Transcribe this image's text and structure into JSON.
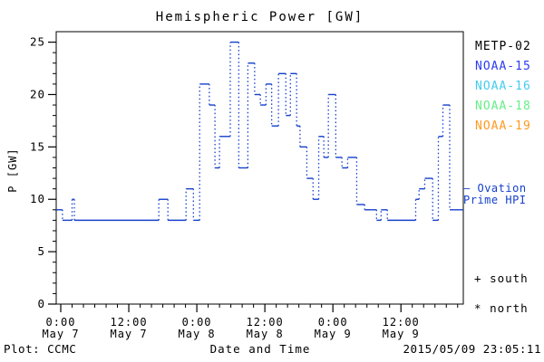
{
  "window": {
    "background": "#ffffff"
  },
  "chart_data": {
    "type": "line",
    "title": "Hemispheric Power [GW]",
    "xlabel": "Date and Time",
    "ylabel": "P [GW]",
    "ylim": [
      0,
      26
    ],
    "y_ticks": [
      0,
      5,
      10,
      15,
      20,
      25
    ],
    "y_minor_step_gw": 1,
    "xlim_hours_from_may7_0000": [
      -0.8,
      71.0
    ],
    "x_minor_step_hours": 2,
    "x_ticks": [
      {
        "hours": 0,
        "time": "0:00",
        "date": "May 7"
      },
      {
        "hours": 12,
        "time": "12:00",
        "date": "May 7"
      },
      {
        "hours": 24,
        "time": "0:00",
        "date": "May 8"
      },
      {
        "hours": 36,
        "time": "12:00",
        "date": "May 8"
      },
      {
        "hours": 48,
        "time": "0:00",
        "date": "May 9"
      },
      {
        "hours": 60,
        "time": "12:00",
        "date": "May 9"
      }
    ],
    "grid": false,
    "legend_position": "right-outside",
    "series": [
      {
        "name": "Ovation Prime HPI",
        "color": "#1540cc",
        "style": "step, solid horizontals, dotted vertical connectors",
        "end_hour": 71.0,
        "step_points_hours_gw": [
          [
            -0.8,
            9
          ],
          [
            0.3,
            8
          ],
          [
            2.0,
            10
          ],
          [
            2.4,
            8
          ],
          [
            17.3,
            10
          ],
          [
            18.9,
            8
          ],
          [
            22.1,
            11
          ],
          [
            23.4,
            8
          ],
          [
            24.5,
            21
          ],
          [
            26.2,
            19
          ],
          [
            27.2,
            13
          ],
          [
            28.0,
            16
          ],
          [
            29.9,
            25
          ],
          [
            31.4,
            13
          ],
          [
            33.0,
            23
          ],
          [
            34.2,
            20
          ],
          [
            35.2,
            19
          ],
          [
            36.2,
            21
          ],
          [
            37.2,
            17
          ],
          [
            38.4,
            22
          ],
          [
            39.7,
            18
          ],
          [
            40.5,
            22
          ],
          [
            41.6,
            17
          ],
          [
            42.2,
            15
          ],
          [
            43.4,
            12
          ],
          [
            44.5,
            10
          ],
          [
            45.5,
            16
          ],
          [
            46.4,
            14
          ],
          [
            47.2,
            20
          ],
          [
            48.5,
            14
          ],
          [
            49.6,
            13
          ],
          [
            50.6,
            14
          ],
          [
            52.2,
            9.5
          ],
          [
            53.6,
            9
          ],
          [
            55.7,
            8
          ],
          [
            56.5,
            9
          ],
          [
            57.6,
            8
          ],
          [
            62.6,
            10
          ],
          [
            63.2,
            11
          ],
          [
            64.2,
            12
          ],
          [
            65.6,
            8
          ],
          [
            66.6,
            16
          ],
          [
            67.4,
            19
          ],
          [
            68.6,
            9
          ]
        ]
      }
    ]
  },
  "legend": {
    "satellites": [
      {
        "label": "METP-02",
        "color": "#000000"
      },
      {
        "label": "NOAA-15",
        "color": "#2b3cf0"
      },
      {
        "label": "NOAA-16",
        "color": "#44ccee"
      },
      {
        "label": "NOAA-18",
        "color": "#66ee88"
      },
      {
        "label": "NOAA-19",
        "color": "#ff9922"
      }
    ],
    "line_key": {
      "sample": "—",
      "line1": "Ovation",
      "line2": "Prime HPI",
      "color": "#1540cc"
    },
    "marker_keys": [
      {
        "marker": "+",
        "label": "south"
      },
      {
        "marker": "*",
        "label": "north"
      }
    ]
  },
  "footer": {
    "plot_source": "Plot: CCMC",
    "generated": "2015/05/09 23:05:11"
  }
}
